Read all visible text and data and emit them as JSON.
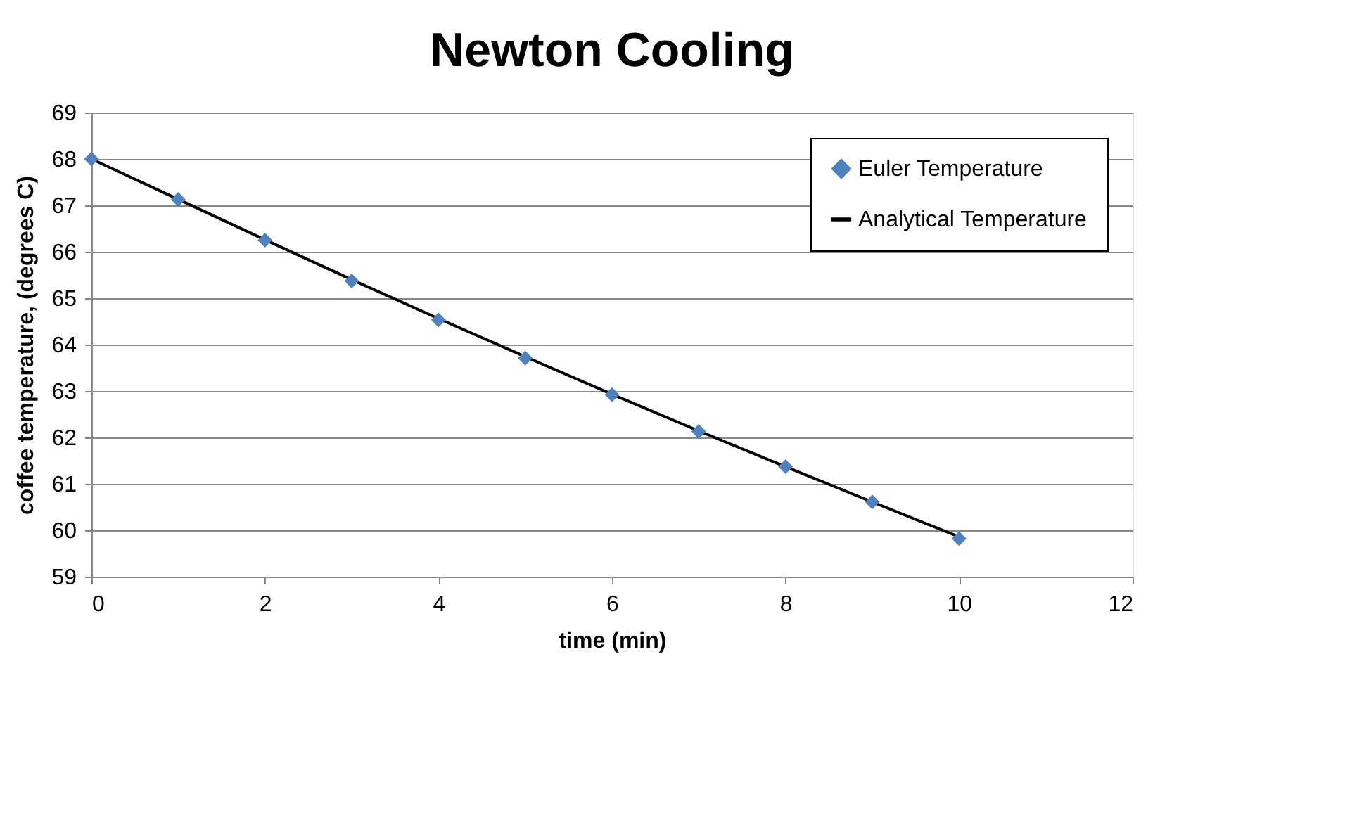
{
  "chart_data": {
    "type": "scatter",
    "title": "Newton Cooling",
    "xlabel": "time (min)",
    "ylabel": "coffee temperature, (degrees C)",
    "x": [
      0,
      1,
      2,
      3,
      4,
      5,
      6,
      7,
      8,
      9,
      10
    ],
    "series": [
      {
        "name": "Euler Temperature",
        "marker": "diamond",
        "color": "#4f81bd",
        "values": [
          68.0,
          67.13,
          66.25,
          65.37,
          64.53,
          63.71,
          62.92,
          62.13,
          61.37,
          60.61,
          59.82
        ]
      },
      {
        "name": "Analytical Temperature",
        "type": "line",
        "marker": "none",
        "line_style": "solid",
        "color": "#000000",
        "values": [
          68.0,
          67.13,
          66.26,
          65.4,
          64.56,
          63.74,
          62.93,
          62.14,
          61.37,
          60.61,
          59.86
        ]
      }
    ],
    "xlim": [
      0,
      12
    ],
    "xticks": [
      0,
      2,
      4,
      6,
      8,
      10,
      12
    ],
    "ylim": [
      59,
      69
    ],
    "yticks": [
      59,
      60,
      61,
      62,
      63,
      64,
      65,
      66,
      67,
      68,
      69
    ],
    "grid": "y",
    "legend": "top right"
  }
}
